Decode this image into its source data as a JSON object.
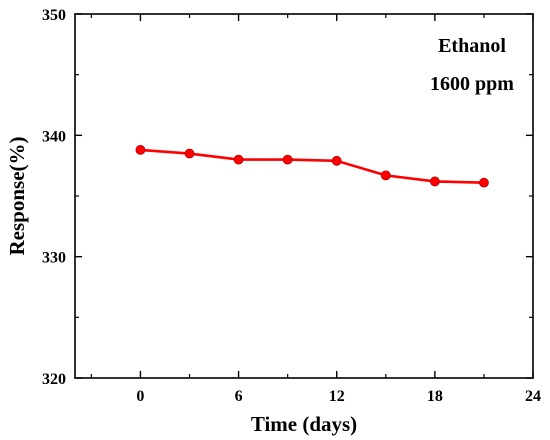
{
  "chart_data": {
    "type": "line",
    "title": "",
    "xlabel": "Time (days)",
    "ylabel": "Response(%)",
    "xlim": [
      -4,
      24
    ],
    "ylim": [
      320,
      350
    ],
    "x_ticks": [
      0,
      6,
      12,
      18,
      24
    ],
    "y_ticks": [
      320,
      330,
      340,
      350
    ],
    "annotations": [
      "Ethanol",
      "1600 ppm"
    ],
    "grid": false,
    "series": [
      {
        "color": "#ff0000",
        "x": [
          0,
          3,
          6,
          9,
          12,
          15,
          18,
          21
        ],
        "y": [
          338.8,
          338.5,
          338.0,
          338.0,
          337.9,
          336.7,
          336.2,
          336.1
        ]
      }
    ]
  }
}
